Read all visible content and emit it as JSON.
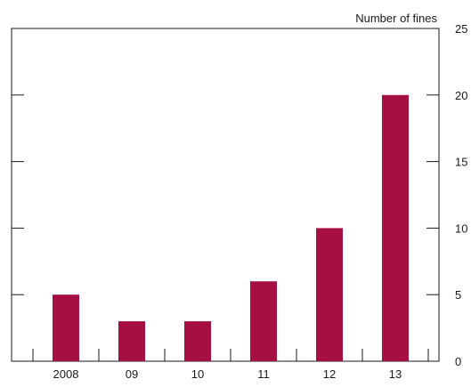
{
  "chart_data": {
    "type": "bar",
    "title": "",
    "xlabel": "",
    "ylabel": "Number of fines",
    "categories": [
      "2008",
      "09",
      "10",
      "11",
      "12",
      "13"
    ],
    "values": [
      5,
      3,
      3,
      6,
      10,
      20
    ],
    "ylim": [
      0,
      25
    ],
    "yticks": [
      0,
      5,
      10,
      15,
      20,
      25
    ],
    "grid": false,
    "legend": "none",
    "bar_color": "#a50f41",
    "axis_color": "#1a1a1a"
  }
}
